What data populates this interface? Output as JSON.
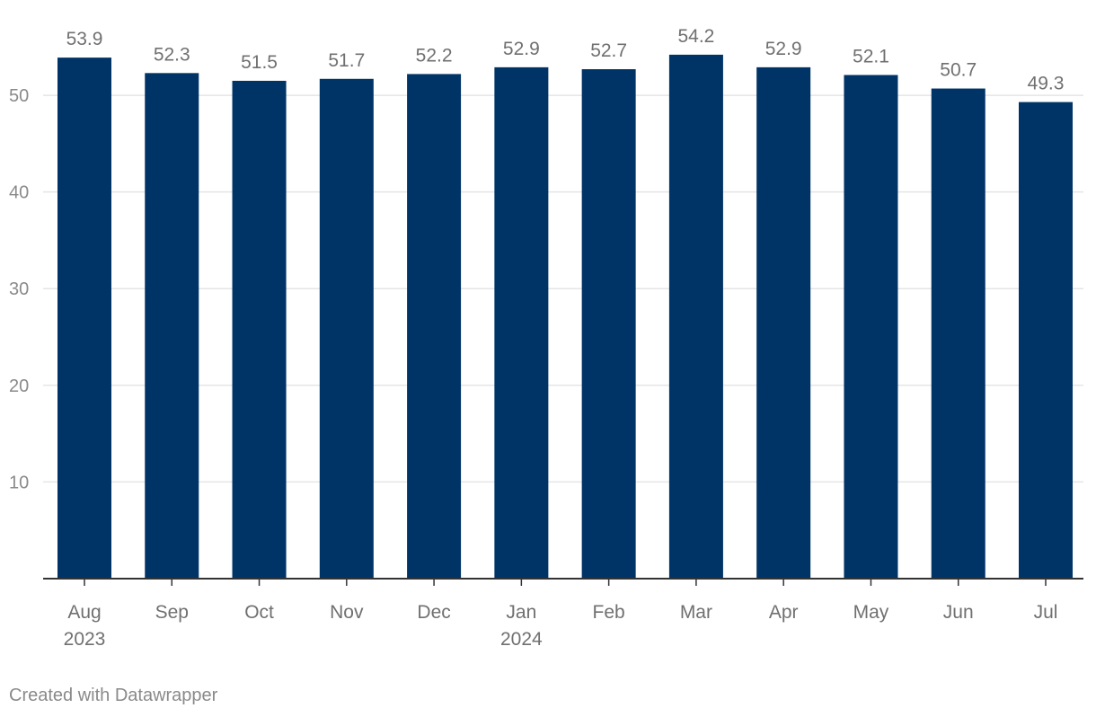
{
  "chart_data": {
    "type": "bar",
    "categories": [
      "Aug",
      "Sep",
      "Oct",
      "Nov",
      "Dec",
      "Jan",
      "Feb",
      "Mar",
      "Apr",
      "May",
      "Jun",
      "Jul"
    ],
    "category_sublabels": [
      "2023",
      "",
      "",
      "",
      "",
      "2024",
      "",
      "",
      "",
      "",
      "",
      ""
    ],
    "values": [
      53.9,
      52.3,
      51.5,
      51.7,
      52.2,
      52.9,
      52.7,
      54.2,
      52.9,
      52.1,
      50.7,
      49.3
    ],
    "data_labels": [
      "53.9",
      "52.3",
      "51.5",
      "51.7",
      "52.2",
      "52.9",
      "52.7",
      "54.2",
      "52.9",
      "52.1",
      "50.7",
      "49.3"
    ],
    "title": "",
    "xlabel": "",
    "ylabel": "",
    "ylim": [
      0,
      58
    ],
    "y_ticks": [
      10,
      20,
      30,
      40,
      50
    ],
    "grid": true,
    "colors": {
      "bar": "#003366",
      "grid": "#e5e5e5",
      "axis": "#333333",
      "text": "#8a8a8a",
      "label": "#707070"
    }
  },
  "footer": {
    "credit": "Created with Datawrapper"
  }
}
